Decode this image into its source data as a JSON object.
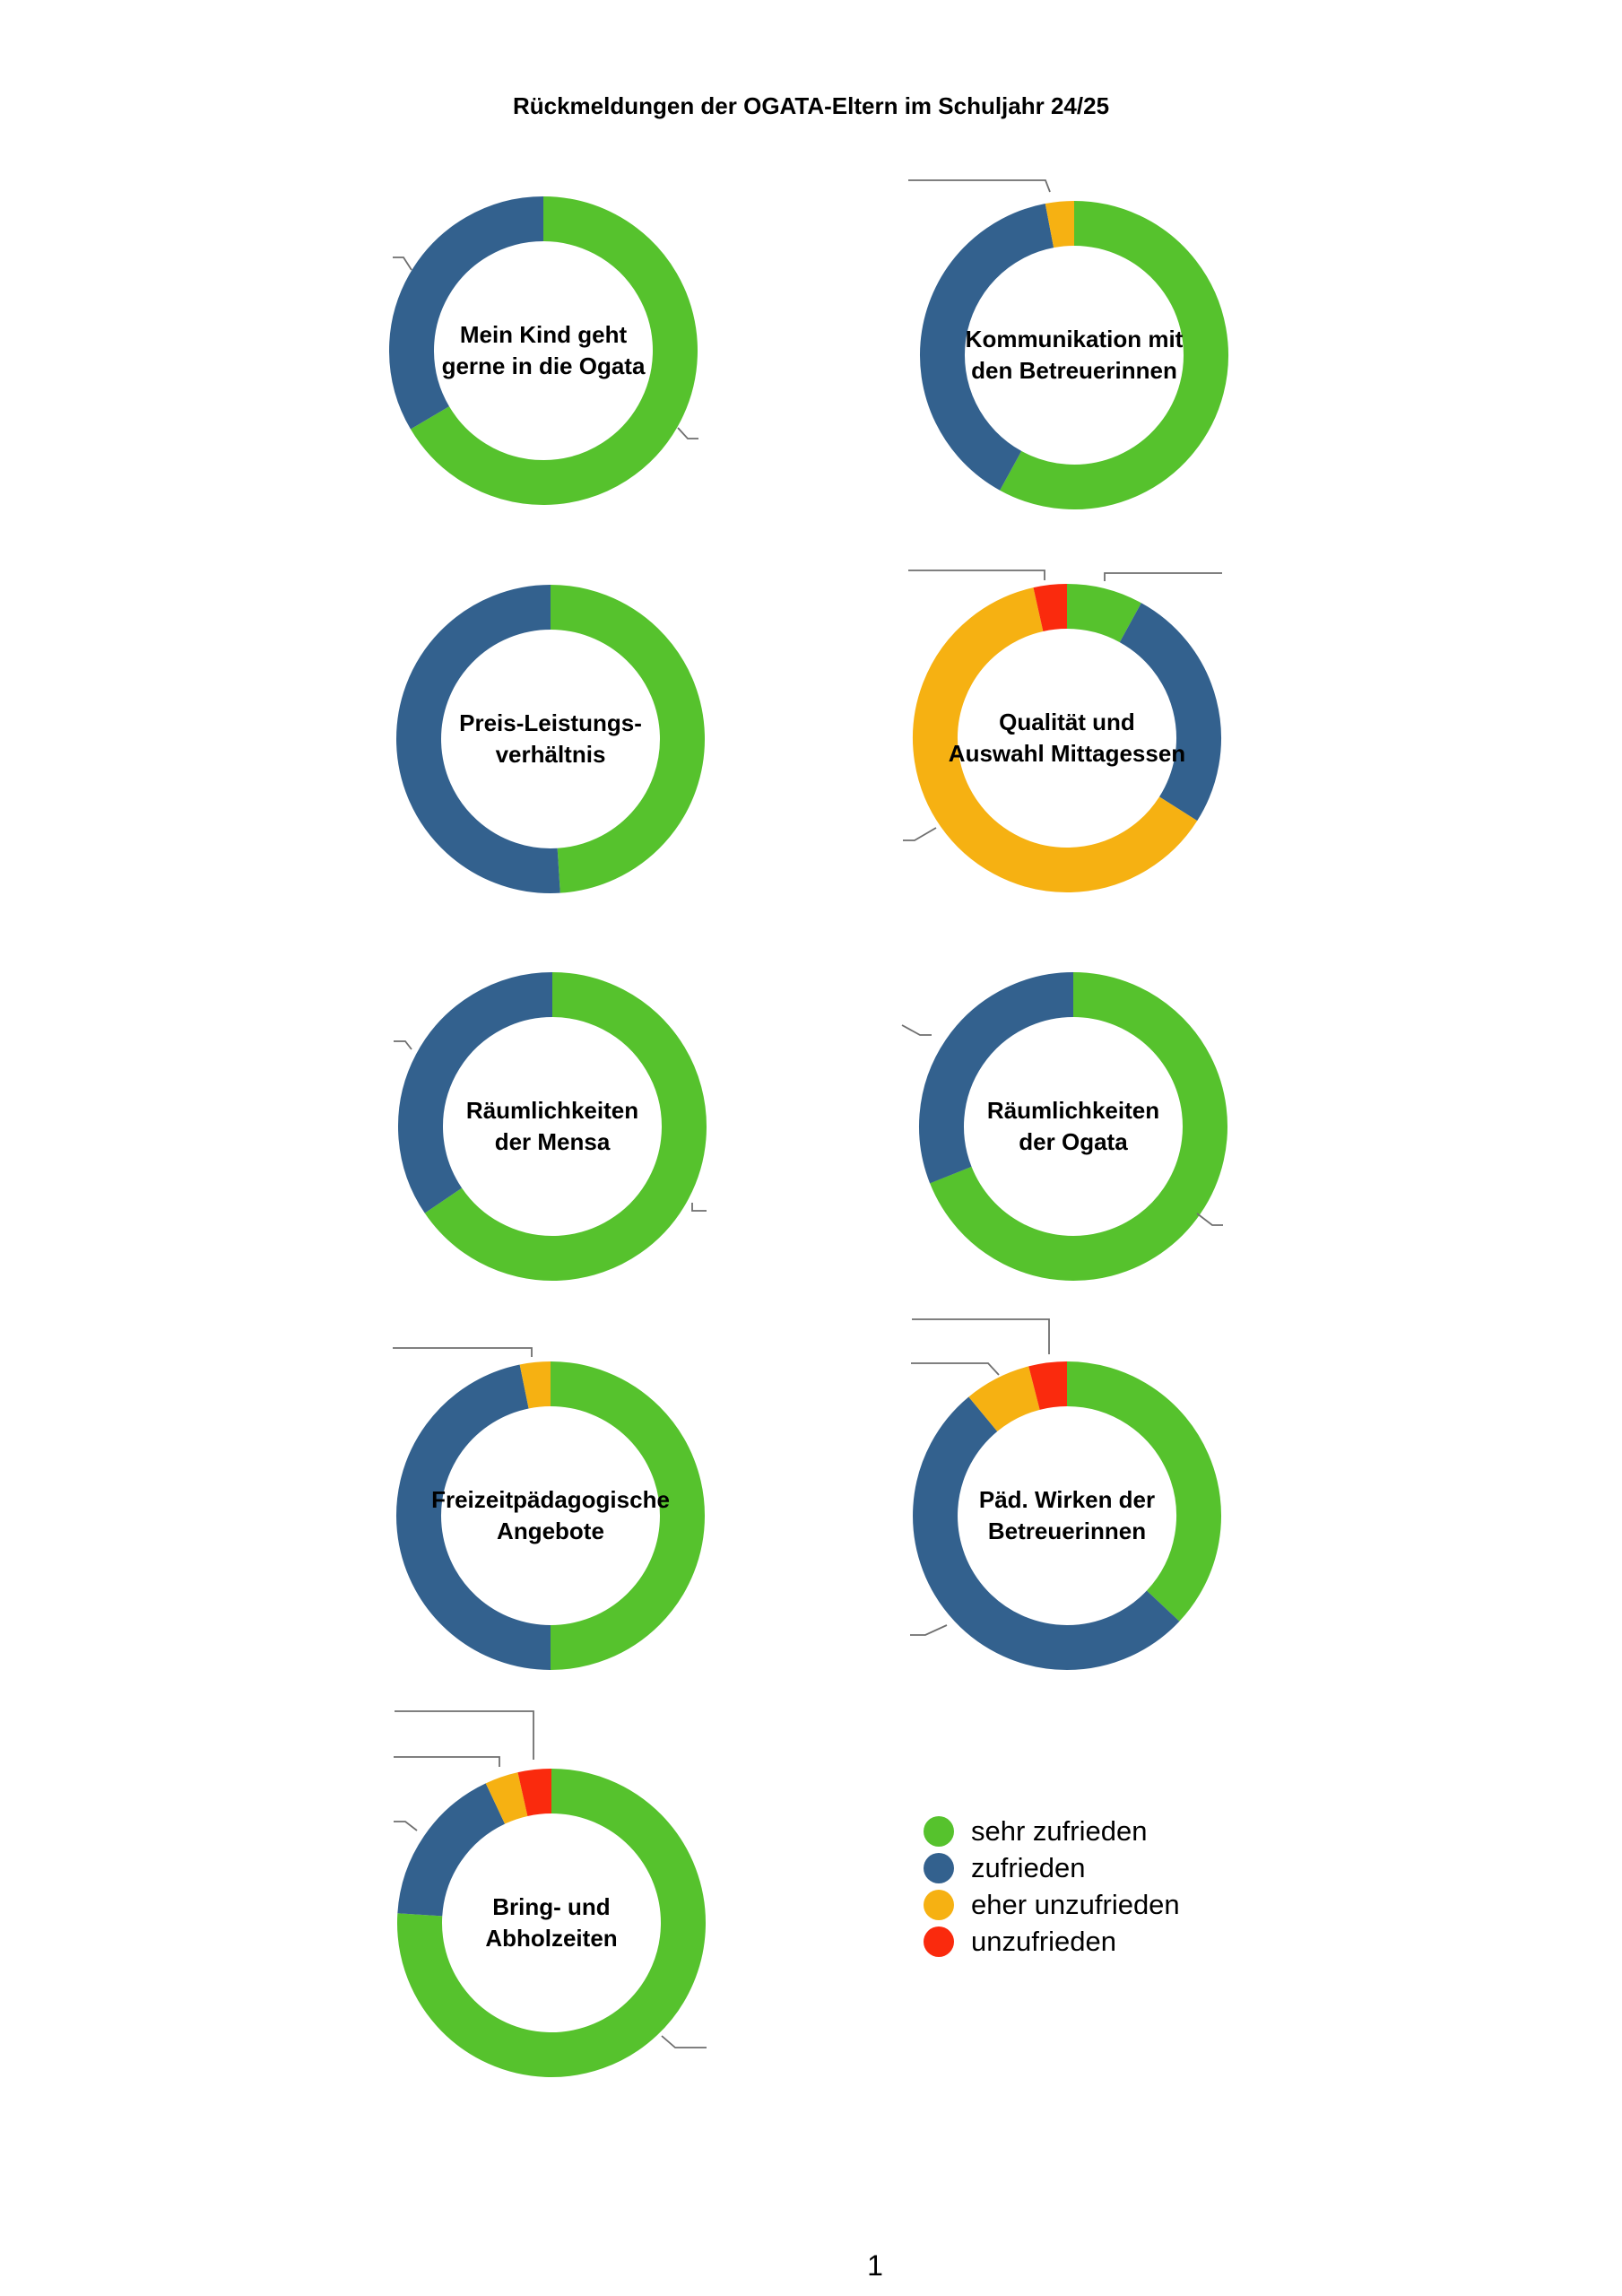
{
  "page": {
    "title": "Rückmeldungen der OGATA-Eltern im Schuljahr 24/25",
    "page_number": "1"
  },
  "colors": {
    "sehr zufrieden": "#56c22d",
    "zufrieden": "#33618e",
    "eher unzufrieden": "#f6b112",
    "unzufrieden": "#fa2a0d"
  },
  "legend": {
    "items": [
      {
        "label": "sehr zufrieden"
      },
      {
        "label": "zufrieden"
      },
      {
        "label": "eher unzufrieden"
      },
      {
        "label": "unzufrieden"
      }
    ]
  },
  "chart_data": [
    {
      "type": "pie",
      "subtype": "donut",
      "title_lines": [
        "Mein Kind geht",
        "gerne in die Ogata"
      ],
      "slices": [
        {
          "category": "sehr zufrieden",
          "pct": 66.5
        },
        {
          "category": "zufrieden",
          "pct": 33.5
        }
      ]
    },
    {
      "type": "pie",
      "subtype": "donut",
      "title_lines": [
        "Kommunikation mit",
        "den Betreuerinnen"
      ],
      "slices": [
        {
          "category": "sehr zufrieden",
          "pct": 58
        },
        {
          "category": "zufrieden",
          "pct": 39
        },
        {
          "category": "eher unzufrieden",
          "pct": 3
        }
      ]
    },
    {
      "type": "pie",
      "subtype": "donut",
      "title_lines": [
        "Preis-Leistungs-",
        "verhältnis"
      ],
      "slices": [
        {
          "category": "sehr zufrieden",
          "pct": 49
        },
        {
          "category": "zufrieden",
          "pct": 51
        }
      ]
    },
    {
      "type": "pie",
      "subtype": "donut",
      "title_lines": [
        "Qualität und",
        "Auswahl Mittagessen"
      ],
      "slices": [
        {
          "category": "sehr zufrieden",
          "pct": 8
        },
        {
          "category": "zufrieden",
          "pct": 26
        },
        {
          "category": "eher unzufrieden",
          "pct": 62.5
        },
        {
          "category": "unzufrieden",
          "pct": 3.5
        }
      ]
    },
    {
      "type": "pie",
      "subtype": "donut",
      "title_lines": [
        "Räumlichkeiten",
        "der Mensa"
      ],
      "slices": [
        {
          "category": "sehr zufrieden",
          "pct": 65.5
        },
        {
          "category": "zufrieden",
          "pct": 34.5
        }
      ]
    },
    {
      "type": "pie",
      "subtype": "donut",
      "title_lines": [
        "Räumlichkeiten",
        "der Ogata"
      ],
      "slices": [
        {
          "category": "sehr zufrieden",
          "pct": 69
        },
        {
          "category": "zufrieden",
          "pct": 31
        }
      ]
    },
    {
      "type": "pie",
      "subtype": "donut",
      "title_lines": [
        "Freizeitpädagogische",
        "Angebote"
      ],
      "slices": [
        {
          "category": "sehr zufrieden",
          "pct": 50
        },
        {
          "category": "zufrieden",
          "pct": 46.8
        },
        {
          "category": "eher unzufrieden",
          "pct": 3.2
        }
      ]
    },
    {
      "type": "pie",
      "subtype": "donut",
      "title_lines": [
        "Päd. Wirken der",
        "Betreuerinnen"
      ],
      "slices": [
        {
          "category": "sehr zufrieden",
          "pct": 37
        },
        {
          "category": "zufrieden",
          "pct": 52
        },
        {
          "category": "eher unzufrieden",
          "pct": 7
        },
        {
          "category": "unzufrieden",
          "pct": 4
        }
      ]
    },
    {
      "type": "pie",
      "subtype": "donut",
      "title_lines": [
        "Bring- und",
        "Abholzeiten"
      ],
      "slices": [
        {
          "category": "sehr zufrieden",
          "pct": 76
        },
        {
          "category": "zufrieden",
          "pct": 17
        },
        {
          "category": "eher unzufrieden",
          "pct": 3.5
        },
        {
          "category": "unzufrieden",
          "pct": 3.5
        }
      ]
    }
  ]
}
